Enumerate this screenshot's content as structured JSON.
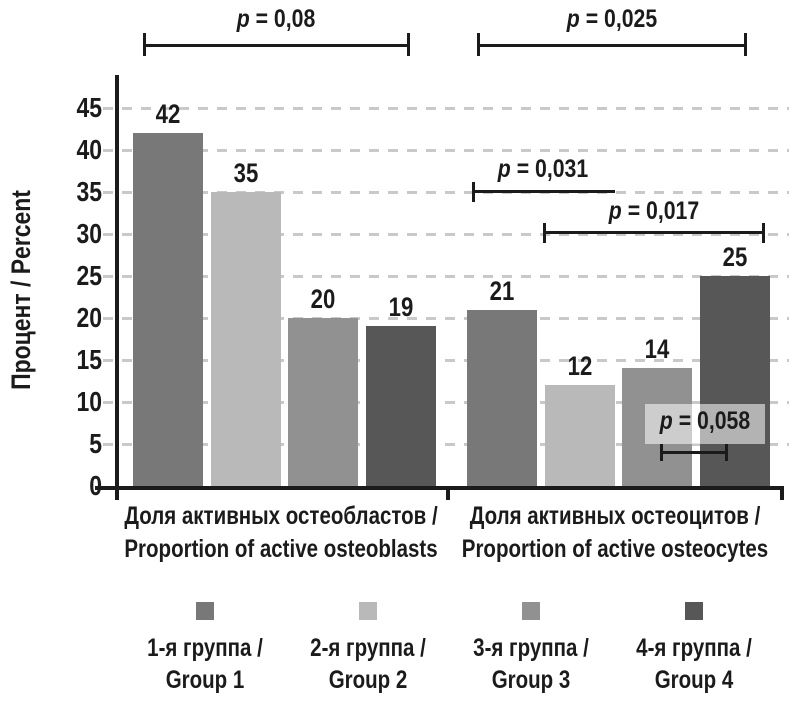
{
  "chart_data": {
    "type": "bar",
    "title": "",
    "ylabel": "Процент / Percent",
    "ylim": [
      0,
      45
    ],
    "ytick_step": 5,
    "yticks": [
      0,
      5,
      10,
      15,
      20,
      25,
      30,
      35,
      40,
      45
    ],
    "grid": "horizontal dashed",
    "legend_position": "bottom",
    "decimal_separator": ",",
    "categories": [
      {
        "label_ru": "Доля активных остеобластов /",
        "label_en": "Proportion of active osteoblasts"
      },
      {
        "label_ru": "Доля активных остеоцитов /",
        "label_en": "Proportion of active osteocytes"
      }
    ],
    "series": [
      {
        "name_ru": "1-я группа /",
        "name_en": "Group 1",
        "color": "#787878",
        "values": [
          42,
          21
        ]
      },
      {
        "name_ru": "2-я группа /",
        "name_en": "Group 2",
        "color": "#b9b9b9",
        "values": [
          35,
          12
        ]
      },
      {
        "name_ru": "3-я группа /",
        "name_en": "Group 3",
        "color": "#919191",
        "values": [
          20,
          14
        ]
      },
      {
        "name_ru": "4-я группа /",
        "name_en": "Group 4",
        "color": "#575757",
        "values": [
          19,
          25
        ]
      }
    ],
    "significance_brackets": [
      {
        "label": "p = 0,08",
        "position": "top, spanning osteoblasts bars"
      },
      {
        "label": "p = 0,025",
        "position": "top, spanning osteocytes bars"
      },
      {
        "label": "p = 0,031",
        "position": "inside plot, osteocytes bars 1–2"
      },
      {
        "label": "p = 0,017",
        "position": "inside plot, osteocytes bars 2–4"
      },
      {
        "label": "p = 0,058",
        "position": "inside plot, osteocytes bars 3–4"
      }
    ]
  }
}
